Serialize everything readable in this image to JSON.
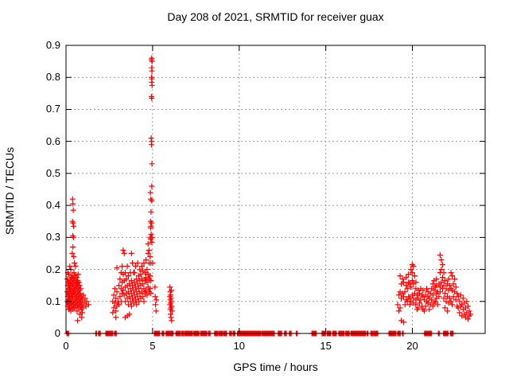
{
  "chart_data": {
    "type": "scatter",
    "title": "Day 208 of 2021, SRMTID for receiver guax",
    "xlabel": "GPS time / hours",
    "ylabel": "SRMTID / TECUs",
    "xlim": [
      0,
      24.2
    ],
    "ylim": [
      0,
      0.9
    ],
    "xticks": [
      [
        0,
        "0"
      ],
      [
        5,
        "5"
      ],
      [
        10,
        "10"
      ],
      [
        15,
        "15"
      ],
      [
        20,
        "20"
      ]
    ],
    "yticks": [
      [
        0,
        "0"
      ],
      [
        0.1,
        "0.1"
      ],
      [
        0.2,
        "0.2"
      ],
      [
        0.3,
        "0.3"
      ],
      [
        0.4,
        "0.4"
      ],
      [
        0.5,
        "0.5"
      ],
      [
        0.6,
        "0.6"
      ],
      [
        0.7,
        "0.7"
      ],
      [
        0.8,
        "0.8"
      ],
      [
        0.9,
        "0.9"
      ]
    ],
    "grid": "dashed",
    "legend": "none",
    "marker": "plus",
    "marker_color": "#ff0000",
    "grid_color": "#9b9b9b",
    "border_color": "#000000",
    "text_color": "#000000",
    "columns": [
      [
        0.38,
        [
          0.42
        ]
      ],
      [
        0.4,
        [
          0.405,
          0.27
        ]
      ],
      [
        0.42,
        [
          0.385
        ]
      ],
      [
        0.37,
        [
          0.35
        ]
      ],
      [
        0.41,
        [
          0.345
        ]
      ],
      [
        0.44,
        [
          0.335
        ]
      ],
      [
        0.39,
        [
          0.305
        ]
      ],
      [
        0.43,
        [
          0.3
        ]
      ],
      [
        0.36,
        [
          0.25
        ]
      ],
      [
        0.45,
        [
          0.24
        ]
      ],
      [
        0.07,
        [
          0.1,
          0.13,
          0.17
        ]
      ],
      [
        0.1,
        [
          0.085,
          0.115,
          0.15,
          0.19
        ]
      ],
      [
        0.13,
        [
          0.095,
          0.12,
          0.16
        ]
      ],
      [
        0.16,
        [
          0.075,
          0.105,
          0.14,
          0.185
        ]
      ],
      [
        0.19,
        [
          0.09,
          0.125,
          0.155
        ]
      ],
      [
        0.22,
        [
          0.08,
          0.11,
          0.145,
          0.21
        ]
      ],
      [
        0.25,
        [
          0.1,
          0.135,
          0.165
        ]
      ],
      [
        0.28,
        [
          0.07,
          0.12,
          0.15,
          0.2
        ]
      ],
      [
        0.31,
        [
          0.095,
          0.13,
          0.175
        ]
      ],
      [
        0.34,
        [
          0.085,
          0.115,
          0.16
        ]
      ],
      [
        0.37,
        [
          0.1,
          0.14,
          0.18
        ]
      ],
      [
        0.4,
        [
          0.075,
          0.12,
          0.155
        ]
      ],
      [
        0.43,
        [
          0.09,
          0.13,
          0.17
        ]
      ],
      [
        0.46,
        [
          0.105,
          0.145,
          0.19
        ]
      ],
      [
        0.49,
        [
          0.08,
          0.125,
          0.165,
          0.22
        ]
      ],
      [
        0.52,
        [
          0.095,
          0.135,
          0.18
        ]
      ],
      [
        0.55,
        [
          0.11,
          0.15,
          0.21
        ]
      ],
      [
        0.58,
        [
          0.085,
          0.12,
          0.16
        ]
      ],
      [
        0.61,
        [
          0.1,
          0.14,
          0.175
        ]
      ],
      [
        0.64,
        [
          0.07,
          0.115,
          0.155
        ]
      ],
      [
        0.67,
        [
          0.09,
          0.13,
          0.165,
          0.04
        ]
      ],
      [
        0.7,
        [
          0.105,
          0.145,
          0.185
        ]
      ],
      [
        0.73,
        [
          0.08,
          0.12,
          0.16
        ]
      ],
      [
        0.76,
        [
          0.095,
          0.135
        ]
      ],
      [
        0.79,
        [
          0.06,
          0.11,
          0.15
        ]
      ],
      [
        0.82,
        [
          0.085,
          0.125
        ]
      ],
      [
        0.85,
        [
          0.1,
          0.14
        ]
      ],
      [
        0.88,
        [
          0.075,
          0.115
        ]
      ],
      [
        0.91,
        [
          0.09,
          0.05
        ]
      ],
      [
        0.94,
        [
          0.105,
          0.065
        ]
      ],
      [
        0.97,
        [
          0.08
        ]
      ],
      [
        1.0,
        [
          0.12
        ]
      ],
      [
        1.05,
        [
          0.095
        ]
      ],
      [
        1.1,
        [
          0.11
        ]
      ],
      [
        1.15,
        [
          0.085
        ]
      ],
      [
        1.2,
        [
          0.1
        ]
      ],
      [
        1.3,
        [
          0.09
        ]
      ],
      [
        2.7,
        [
          0.065,
          0.1
        ]
      ],
      [
        2.76,
        [
          0.08,
          0.12
        ]
      ],
      [
        2.82,
        [
          0.095,
          0.14
        ]
      ],
      [
        2.88,
        [
          0.07,
          0.11,
          0.05
        ]
      ],
      [
        2.94,
        [
          0.085,
          0.13,
          0.205
        ]
      ],
      [
        3.0,
        [
          0.1
        ]
      ],
      [
        3.06,
        [
          0.09,
          0.15
        ]
      ],
      [
        3.12,
        [
          0.115,
          0.17
        ]
      ],
      [
        3.18,
        [
          0.1,
          0.14,
          0.19
        ]
      ],
      [
        3.24,
        [
          0.125,
          0.16,
          0.21
        ]
      ],
      [
        3.3,
        [
          0.135,
          0.185,
          0.26
        ]
      ],
      [
        3.36,
        [
          0.12,
          0.165,
          0.25
        ]
      ],
      [
        3.42,
        [
          0.1,
          0.145,
          0.19,
          0.05
        ]
      ],
      [
        3.48,
        [
          0.125,
          0.17
        ]
      ],
      [
        3.54,
        [
          0.11,
          0.15,
          0.21,
          0.055
        ]
      ],
      [
        3.6,
        [
          0.09,
          0.13,
          0.18
        ]
      ],
      [
        3.66,
        [
          0.115,
          0.155,
          0.06
        ]
      ],
      [
        3.72,
        [
          0.1,
          0.14,
          0.19
        ]
      ],
      [
        3.78,
        [
          0.085,
          0.125,
          0.165,
          0.25
        ]
      ],
      [
        3.84,
        [
          0.11,
          0.15,
          0.22
        ]
      ],
      [
        3.9,
        [
          0.095,
          0.135,
          0.19
        ]
      ],
      [
        3.96,
        [
          0.12,
          0.16,
          0.19
        ]
      ],
      [
        4.02,
        [
          0.105,
          0.145,
          0.21
        ]
      ],
      [
        4.08,
        [
          0.09,
          0.13,
          0.17
        ]
      ],
      [
        4.14,
        [
          0.115,
          0.155,
          0.22
        ]
      ],
      [
        4.2,
        [
          0.1,
          0.14,
          0.18
        ]
      ],
      [
        4.26,
        [
          0.125,
          0.165,
          0.2
        ]
      ],
      [
        4.32,
        [
          0.11,
          0.15,
          0.185
        ]
      ],
      [
        4.38,
        [
          0.13,
          0.17,
          0.21
        ]
      ],
      [
        4.44,
        [
          0.115,
          0.155,
          0.195
        ]
      ],
      [
        4.5,
        [
          0.1,
          0.14,
          0.22
        ]
      ],
      [
        4.56,
        [
          0.125,
          0.165,
          0.19
        ]
      ],
      [
        4.62,
        [
          0.135,
          0.175,
          0.23
        ]
      ],
      [
        4.68,
        [
          0.12,
          0.16,
          0.2
        ]
      ],
      [
        4.74,
        [
          0.145,
          0.185,
          0.25,
          0.28
        ]
      ],
      [
        4.8,
        [
          0.13,
          0.17,
          0.22,
          0.26
        ]
      ],
      [
        4.86,
        [
          0.14,
          0.18,
          0.24,
          0.3
        ]
      ],
      [
        4.9,
        [
          0.125,
          0.165,
          0.22
        ]
      ],
      [
        4.93,
        [
          0.855,
          0.74,
          0.59
        ]
      ],
      [
        4.95,
        [
          0.86,
          0.83,
          0.785,
          0.735,
          0.46,
          0.415,
          0.285
        ]
      ],
      [
        4.96,
        [
          0.82,
          0.795,
          0.53
        ]
      ],
      [
        4.97,
        [
          0.85,
          0.775,
          0.3
        ]
      ],
      [
        4.94,
        [
          0.8,
          0.6,
          0.345
        ]
      ],
      [
        4.92,
        [
          0.61,
          0.31
        ]
      ],
      [
        4.9,
        [
          0.42,
          0.335
        ]
      ],
      [
        4.87,
        [
          0.44
        ]
      ],
      [
        4.91,
        [
          0.38
        ]
      ],
      [
        4.89,
        [
          0.33,
          0.295
        ]
      ],
      [
        4.88,
        [
          0.35
        ]
      ],
      [
        5.0,
        [
          0.22
        ]
      ],
      [
        5.14,
        [
          0.145
        ]
      ],
      [
        5.15,
        [
          0.115
        ]
      ],
      [
        5.17,
        [
          0.09
        ]
      ],
      [
        5.2,
        [
          0.07
        ]
      ],
      [
        5.22,
        [
          0.105
        ]
      ],
      [
        6.0,
        [
          0.145,
          0.115,
          0.09
        ]
      ],
      [
        6.02,
        [
          0.13,
          0.105,
          0.075
        ]
      ],
      [
        6.04,
        [
          0.12,
          0.095,
          0.06
        ]
      ],
      [
        6.06,
        [
          0.11,
          0.08,
          0.05
        ]
      ],
      [
        6.08,
        [
          0.135,
          0.1
        ]
      ],
      [
        6.1,
        [
          0.085,
          0.04
        ]
      ],
      [
        6.12,
        [
          0.07
        ]
      ],
      [
        19.15,
        [
          0.09
        ]
      ],
      [
        19.22,
        [
          0.12,
          0.07
        ]
      ],
      [
        19.29,
        [
          0.18,
          0.13,
          0.08
        ]
      ],
      [
        19.36,
        [
          0.155,
          0.11,
          0.04
        ]
      ],
      [
        19.43,
        [
          0.17,
          0.125
        ]
      ],
      [
        19.5,
        [
          0.16,
          0.115,
          0.035
        ]
      ],
      [
        19.57,
        [
          0.13,
          0.09
        ]
      ],
      [
        19.64,
        [
          0.175,
          0.15,
          0.105
        ]
      ],
      [
        19.71,
        [
          0.14,
          0.1
        ]
      ],
      [
        19.78,
        [
          0.185,
          0.16,
          0.115
        ]
      ],
      [
        19.85,
        [
          0.155,
          0.11,
          0.09
        ]
      ],
      [
        19.92,
        [
          0.2,
          0.145,
          0.1
        ]
      ],
      [
        19.99,
        [
          0.215,
          0.19,
          0.165,
          0.12
        ]
      ],
      [
        20.06,
        [
          0.21,
          0.155,
          0.11,
          0.095
        ]
      ],
      [
        20.13,
        [
          0.18,
          0.125
        ]
      ],
      [
        20.2,
        [
          0.16,
          0.14,
          0.105,
          0.09
        ]
      ],
      [
        20.27,
        [
          0.12,
          0.075
        ]
      ],
      [
        20.34,
        [
          0.135,
          0.11,
          0.08
        ]
      ],
      [
        20.41,
        [
          0.125,
          0.095
        ]
      ],
      [
        20.48,
        [
          0.14,
          0.105
        ]
      ],
      [
        20.55,
        [
          0.12,
          0.085
        ]
      ],
      [
        20.62,
        [
          0.135,
          0.115,
          0.075
        ]
      ],
      [
        20.69,
        [
          0.105,
          0.07
        ]
      ],
      [
        20.76,
        [
          0.12,
          0.085
        ]
      ],
      [
        20.83,
        [
          0.14,
          0.1
        ]
      ],
      [
        20.9,
        [
          0.13,
          0.115,
          0.095
        ]
      ],
      [
        20.97,
        [
          0.11,
          0.075
        ]
      ],
      [
        21.04,
        [
          0.125,
          0.09
        ]
      ],
      [
        21.11,
        [
          0.14,
          0.105
        ]
      ],
      [
        21.18,
        [
          0.155,
          0.12,
          0.085
        ]
      ],
      [
        21.25,
        [
          0.165,
          0.135,
          0.095
        ]
      ],
      [
        21.32,
        [
          0.145,
          0.1
        ]
      ],
      [
        21.39,
        [
          0.17,
          0.15,
          0.125,
          0.11
        ]
      ],
      [
        21.46,
        [
          0.13,
          0.09
        ]
      ],
      [
        21.53,
        [
          0.155,
          0.115
        ]
      ],
      [
        21.6,
        [
          0.245,
          0.19,
          0.145,
          0.13
        ]
      ],
      [
        21.67,
        [
          0.23,
          0.2,
          0.16
        ]
      ],
      [
        21.74,
        [
          0.215,
          0.175,
          0.14
        ]
      ],
      [
        21.81,
        [
          0.19,
          0.15,
          0.11
        ]
      ],
      [
        21.88,
        [
          0.165,
          0.125,
          0.08
        ]
      ],
      [
        21.95,
        [
          0.14,
          0.1
        ]
      ],
      [
        22.02,
        [
          0.155,
          0.115,
          0.07
        ]
      ],
      [
        22.09,
        [
          0.17,
          0.135,
          0.095
        ]
      ],
      [
        22.16,
        [
          0.15,
          0.11
        ]
      ],
      [
        22.23,
        [
          0.19,
          0.14,
          0.1
        ]
      ],
      [
        22.3,
        [
          0.18,
          0.135,
          0.09
        ]
      ],
      [
        22.37,
        [
          0.155,
          0.115
        ]
      ],
      [
        22.44,
        [
          0.17,
          0.13
        ]
      ],
      [
        22.51,
        [
          0.145,
          0.105
        ]
      ],
      [
        22.58,
        [
          0.125,
          0.085
        ]
      ],
      [
        22.65,
        [
          0.115,
          0.08
        ]
      ],
      [
        22.72,
        [
          0.1,
          0.065
        ]
      ],
      [
        22.79,
        [
          0.12,
          0.085
        ]
      ],
      [
        22.86,
        [
          0.09,
          0.055
        ]
      ],
      [
        22.93,
        [
          0.11,
          0.075
        ]
      ],
      [
        23.0,
        [
          0.095,
          0.06
        ]
      ],
      [
        23.07,
        [
          0.08,
          0.05
        ]
      ],
      [
        23.14,
        [
          0.1,
          0.065
        ]
      ],
      [
        23.21,
        [
          0.085,
          0.045
        ]
      ],
      [
        23.28,
        [
          0.07,
          0.055
        ]
      ],
      [
        23.35,
        [
          0.06
        ]
      ]
    ],
    "zero_segments": [
      [
        0.05,
        0.18
      ],
      [
        1.72,
        1.78
      ],
      [
        1.88,
        2.0
      ],
      [
        2.3,
        2.5
      ],
      [
        2.55,
        2.72
      ],
      [
        2.8,
        2.92
      ],
      [
        5.1,
        5.42
      ],
      [
        5.55,
        5.65
      ],
      [
        5.78,
        6.2
      ],
      [
        6.35,
        6.6
      ],
      [
        6.68,
        6.78
      ],
      [
        6.85,
        7.3
      ],
      [
        7.38,
        7.72
      ],
      [
        7.78,
        8.15
      ],
      [
        8.22,
        8.35
      ],
      [
        8.58,
        8.78
      ],
      [
        8.85,
        9.05
      ],
      [
        9.12,
        9.3
      ],
      [
        9.45,
        9.55
      ],
      [
        9.65,
        9.78
      ],
      [
        9.9,
        11.25
      ],
      [
        11.32,
        12.02
      ],
      [
        12.25,
        12.45
      ],
      [
        12.62,
        12.72
      ],
      [
        12.9,
        13.0
      ],
      [
        13.3,
        13.35
      ],
      [
        14.2,
        14.46
      ],
      [
        14.78,
        15.0
      ],
      [
        15.08,
        15.3
      ],
      [
        15.4,
        15.6
      ],
      [
        15.75,
        16.05
      ],
      [
        16.15,
        16.36
      ],
      [
        16.45,
        17.15
      ],
      [
        17.2,
        17.3
      ],
      [
        17.38,
        17.46
      ],
      [
        17.6,
        17.72
      ],
      [
        17.76,
        17.86
      ],
      [
        17.9,
        18.0
      ],
      [
        18.65,
        19.05
      ],
      [
        19.15,
        19.3
      ],
      [
        19.42,
        19.5
      ],
      [
        20.7,
        21.1
      ],
      [
        21.5,
        21.58
      ],
      [
        21.8,
        22.05
      ],
      [
        22.2,
        22.35
      ]
    ],
    "zero_step": 0.05
  }
}
